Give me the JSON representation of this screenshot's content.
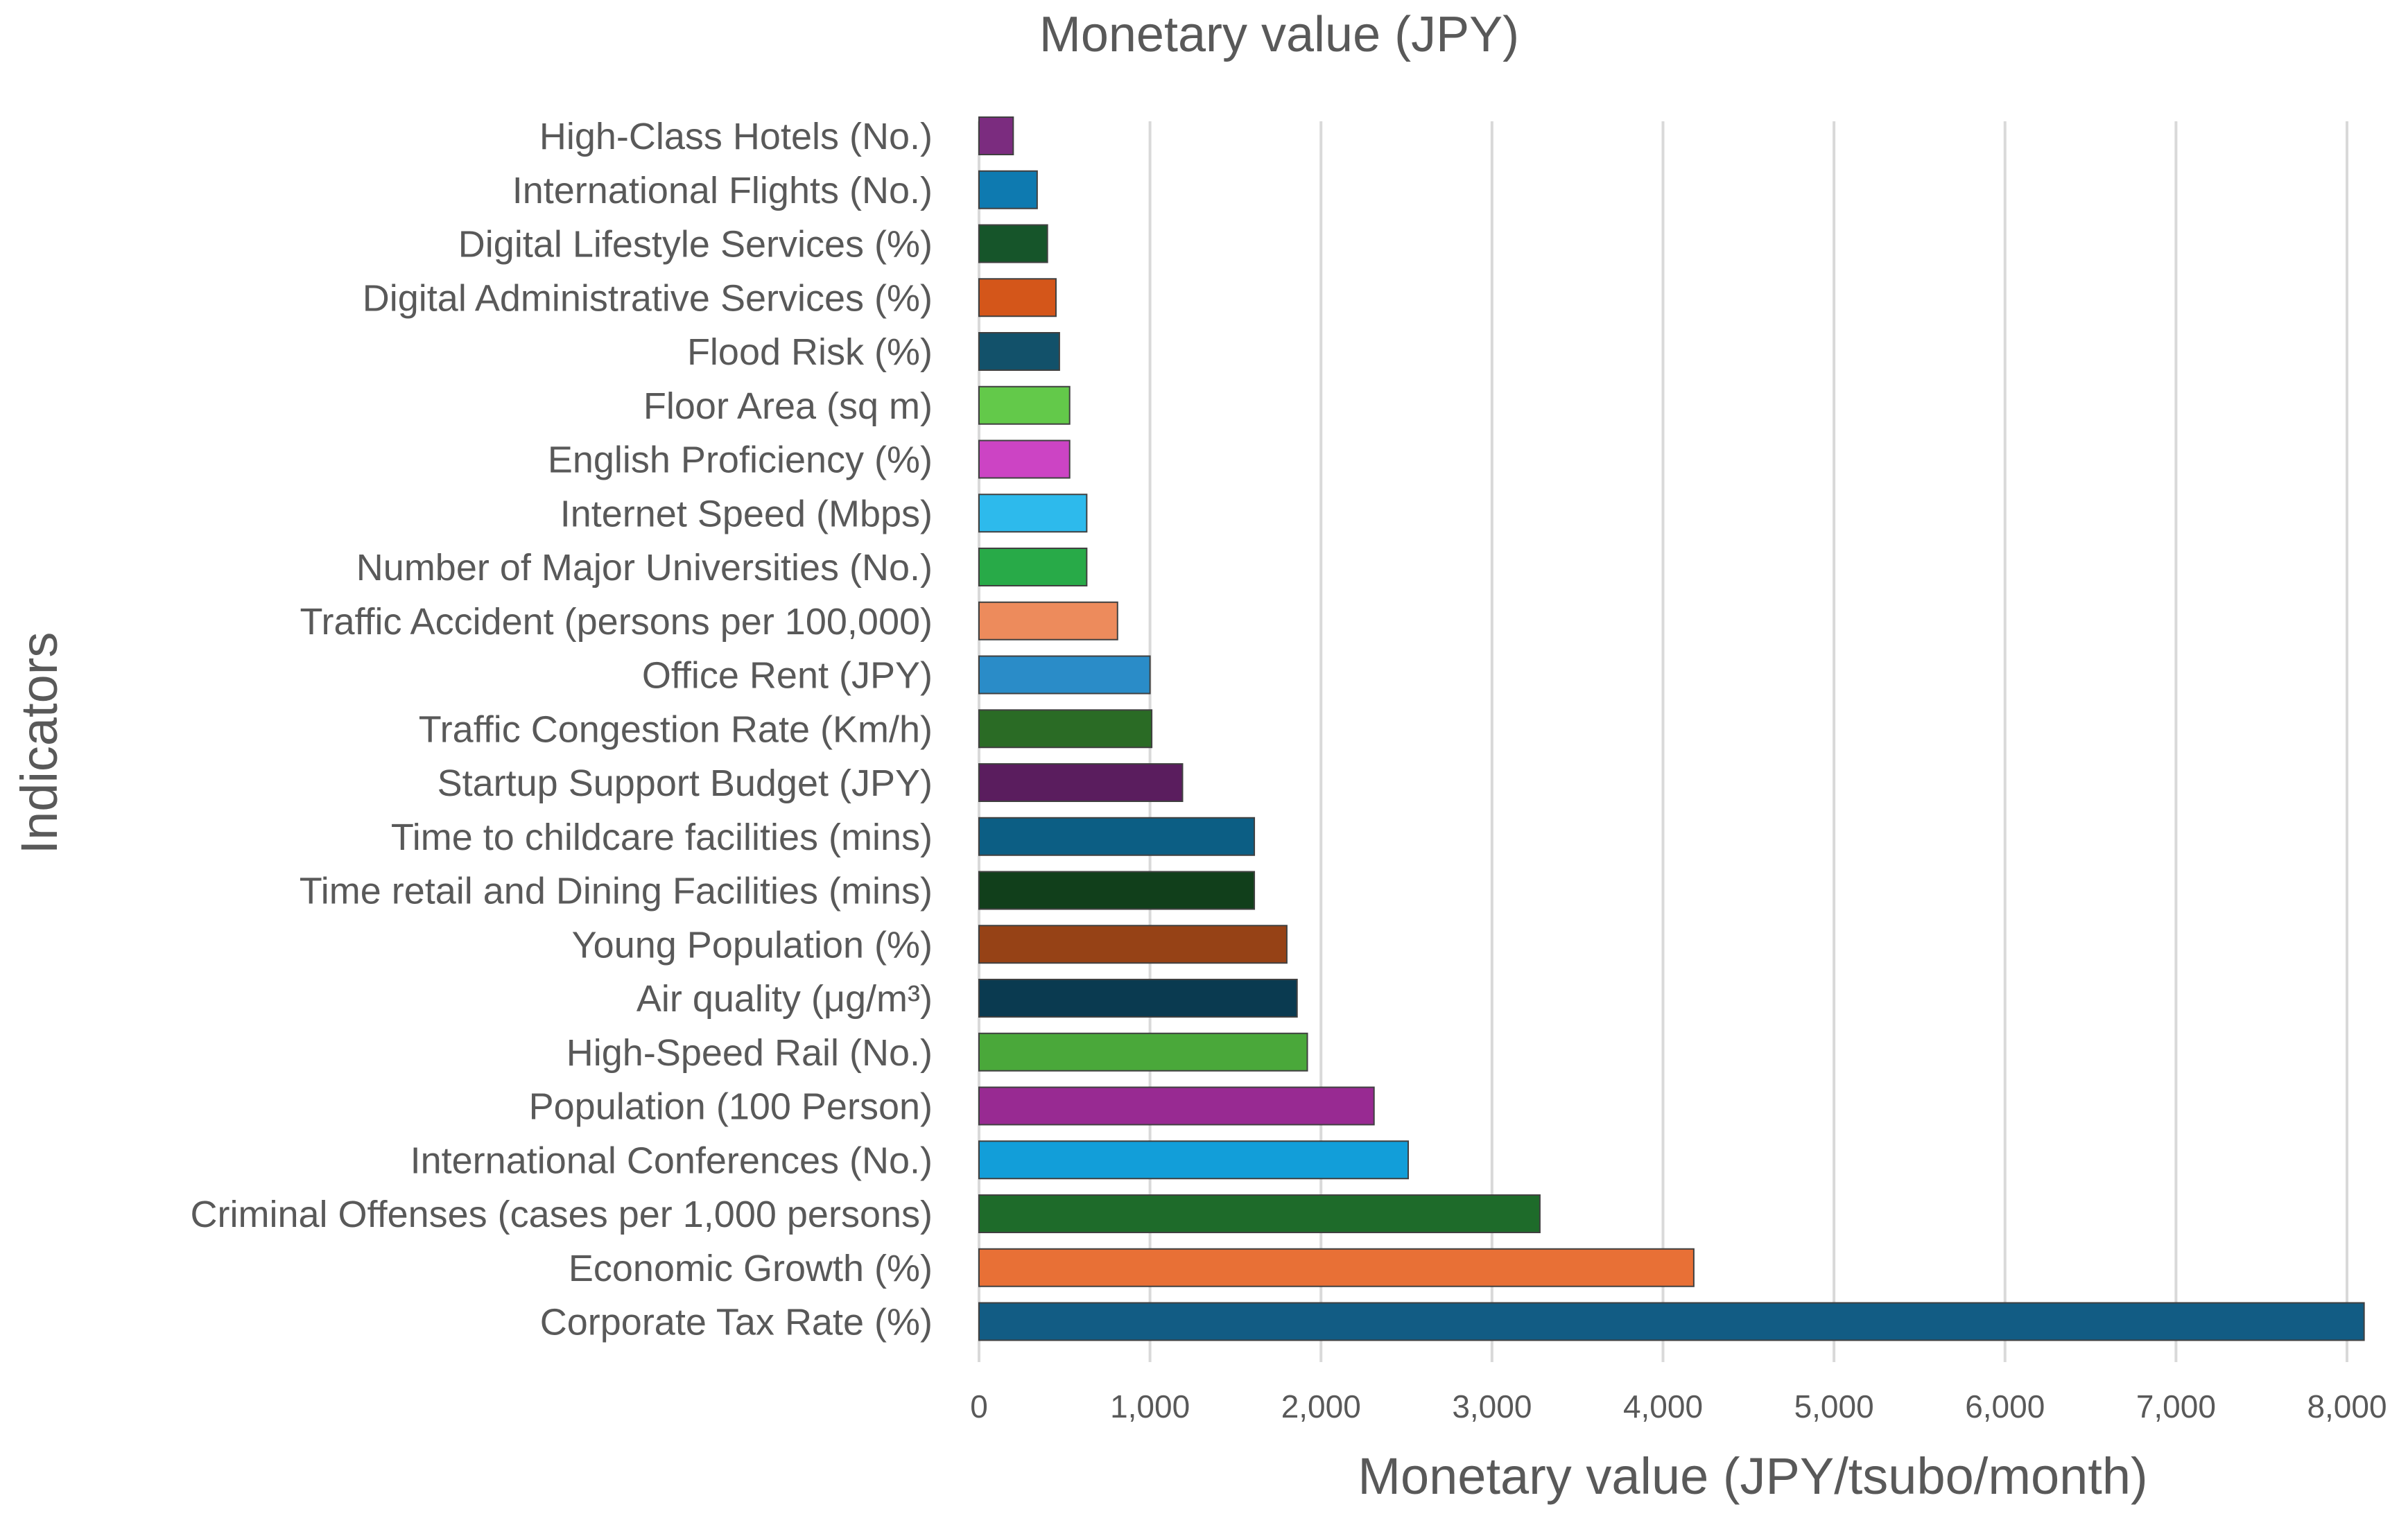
{
  "chart_data": {
    "type": "bar",
    "orientation": "horizontal",
    "title": "Monetary value (JPY)",
    "xlabel": "Monetary value (JPY/tsubo/month)",
    "ylabel": "Indicators",
    "xlim": [
      0,
      8000
    ],
    "x_ticks": [
      0,
      1000,
      2000,
      3000,
      4000,
      5000,
      6000,
      7000,
      8000
    ],
    "x_tick_labels": [
      "0",
      "1,000",
      "2,000",
      "3,000",
      "4,000",
      "5,000",
      "6,000",
      "7,000",
      "8,000"
    ],
    "grid": "vertical",
    "legend": "none",
    "categories": [
      "High-Class Hotels (No.)",
      "International Flights (No.)",
      "Digital Lifestyle Services (%)",
      "Digital Administrative Services (%)",
      "Flood Risk (%)",
      "Floor Area (sq m)",
      "English Proficiency (%)",
      "Internet Speed (Mbps)",
      "Number of Major Universities (No.)",
      "Traffic Accident (persons per 100,000)",
      "Office Rent (JPY)",
      "Traffic Congestion Rate (Km/h)",
      "Startup Support Budget (JPY)",
      "Time to childcare facilities (mins)",
      "Time retail and Dining Facilities (mins)",
      "Young Population (%)",
      "Air quality (μg/m³)",
      "High-Speed Rail (No.)",
      "Population (100 Person)",
      "International Conferences (No.)",
      "Criminal Offenses (cases per 1,000 persons)",
      "Economic Growth (%)",
      "Corporate Tax Rate (%)"
    ],
    "values": [
      200,
      340,
      400,
      450,
      470,
      530,
      530,
      630,
      630,
      810,
      1000,
      1010,
      1190,
      1610,
      1610,
      1800,
      1860,
      1920,
      2310,
      2510,
      3280,
      4180,
      8100
    ],
    "colors": [
      "#7b2c7f",
      "#0e7ab0",
      "#16552a",
      "#d4561a",
      "#12516a",
      "#63c94a",
      "#cc44c4",
      "#2dbaec",
      "#28aa48",
      "#ed8b5c",
      "#2a8cc8",
      "#2a6b25",
      "#5a1d5e",
      "#0c5e84",
      "#113f1b",
      "#964216",
      "#0a3a50",
      "#4aa83a",
      "#982a92",
      "#129ed9",
      "#1e6b2a",
      "#e87036",
      "#125c84"
    ]
  }
}
